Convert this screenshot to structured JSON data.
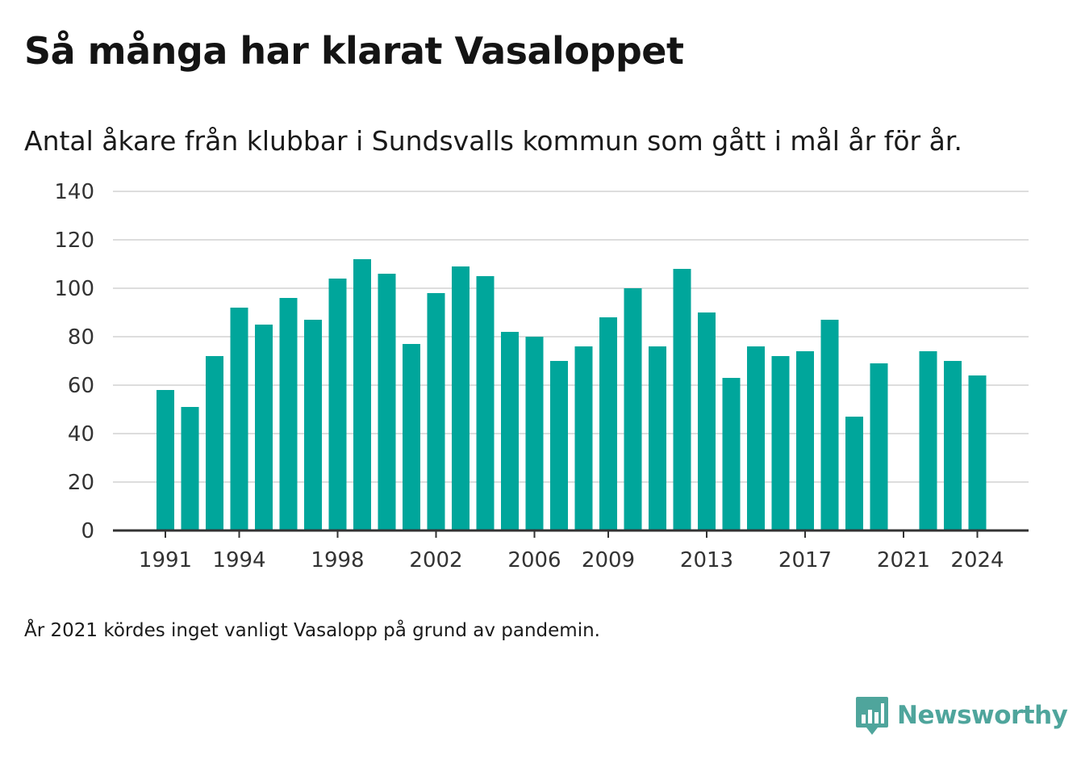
{
  "header": {
    "title": "Så många har klarat Vasaloppet",
    "subtitle": "Antal åkare från klubbar i Sundsvalls kommun som gått i mål år för år."
  },
  "footnote": "År 2021 kördes inget vanligt Vasalopp på grund av pandemin.",
  "brand": {
    "name": "Newsworthy",
    "logo_icon": "newsworthy-logo-icon",
    "color": "#4fa59c"
  },
  "colors": {
    "bar": "#00a69b",
    "grid": "#dddddd",
    "axis": "#333333"
  },
  "chart_data": {
    "type": "bar",
    "title": "Så många har klarat Vasaloppet",
    "subtitle": "Antal åkare från klubbar i Sundsvalls kommun som gått i mål år för år.",
    "xlabel": "",
    "ylabel": "",
    "x": [
      1991,
      1992,
      1993,
      1994,
      1995,
      1996,
      1997,
      1998,
      1999,
      2000,
      2001,
      2002,
      2003,
      2004,
      2005,
      2006,
      2007,
      2008,
      2009,
      2010,
      2011,
      2012,
      2013,
      2014,
      2015,
      2016,
      2017,
      2018,
      2019,
      2020,
      2021,
      2022,
      2023,
      2024
    ],
    "values": [
      58,
      51,
      72,
      92,
      85,
      96,
      87,
      104,
      112,
      106,
      77,
      98,
      109,
      105,
      82,
      80,
      70,
      76,
      88,
      100,
      76,
      108,
      90,
      63,
      76,
      72,
      74,
      87,
      47,
      69,
      null,
      74,
      70,
      64
    ],
    "xticks": [
      1991,
      1994,
      1998,
      2002,
      2006,
      2009,
      2013,
      2017,
      2021,
      2024
    ],
    "yticks": [
      0,
      20,
      40,
      60,
      80,
      100,
      120,
      140
    ],
    "ylim": [
      0,
      140
    ],
    "grid": true,
    "legend": "none"
  }
}
